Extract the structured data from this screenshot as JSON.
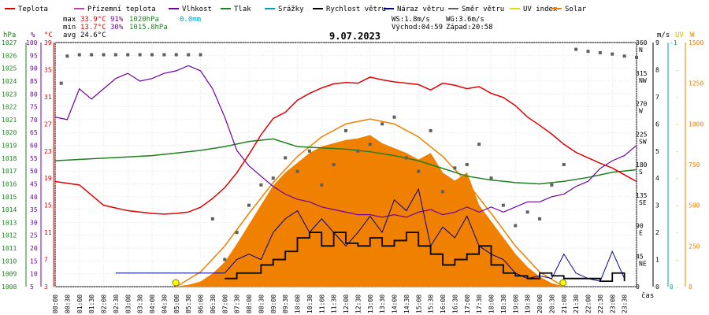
{
  "title": "9.07.2023",
  "legend": [
    {
      "label": "Teplota",
      "color": "#e00000"
    },
    {
      "label": "Přízemní teplota",
      "color": "#c040c0"
    },
    {
      "label": "Vlhkost",
      "color": "#7000a0"
    },
    {
      "label": "Tlak",
      "color": "#208020"
    },
    {
      "label": "Srážky",
      "color": "#00a0c0"
    },
    {
      "label": "Rychlost větru",
      "color": "#000000"
    },
    {
      "label": "Náraz větru",
      "color": "#000090"
    },
    {
      "label": "Směr větru",
      "color": "#606060"
    },
    {
      "label": "UV index",
      "color": "#e0e000"
    },
    {
      "label": "Solar",
      "color": "#f08000"
    }
  ],
  "stats": {
    "max_label": "max",
    "max_temp": "33.9°C",
    "max_hum": "91%",
    "max_press": "1020hPa",
    "rain": "0.0mm",
    "min_label": "min",
    "min_temp": "13.7°C",
    "min_hum": "30%",
    "min_press": "1015.8hPa",
    "avg_label": "avg",
    "avg_temp": "24.6°C"
  },
  "wind_info": {
    "ws": "WS:1.8m/s",
    "wg": "WG:3.6m/s",
    "sunrise": "Východ:04:59",
    "sunset": "Západ:20:58"
  },
  "axes": {
    "hpa_label": "hPa",
    "pct_label": "%",
    "c_label": "°C",
    "ms_label": "m/s",
    "uv_label": "UV",
    "w_label": "W",
    "hpa_ticks": [
      "1027",
      "1026",
      "1025",
      "1024",
      "1023",
      "1022",
      "1021",
      "1020",
      "1019",
      "1018",
      "1017",
      "1016",
      "1015",
      "1014",
      "1013",
      "1012",
      "1011",
      "1010",
      "1009",
      "1008"
    ],
    "pct_ticks": [
      "100",
      "95",
      "90",
      "85",
      "80",
      "75",
      "70",
      "65",
      "60",
      "55",
      "50",
      "45",
      "40",
      "35",
      "30",
      "25",
      "20",
      "15",
      "10",
      "5"
    ],
    "c_ticks": [
      "39",
      "35",
      "31",
      "27",
      "23",
      "19",
      "15",
      "11",
      "7",
      "3"
    ],
    "deg_ticks": [
      "360",
      "315",
      "270",
      "225",
      "180",
      "135",
      "90",
      "45",
      "0"
    ],
    "dir_ticks": [
      "N",
      "NW",
      "W",
      "SW",
      "S",
      "SE",
      "E",
      "NE",
      ""
    ],
    "ms_ticks": [
      "9",
      "8",
      "7",
      "6",
      "5",
      "4",
      "3",
      "2",
      "1",
      "0"
    ],
    "uv_ticks": [
      "-1",
      "",
      "",
      "",
      "",
      "",
      "",
      "",
      "",
      "0"
    ],
    "w_ticks": [
      "1500",
      "1250",
      "1000",
      "750",
      "500",
      "250",
      "0"
    ],
    "time_ticks": [
      "00:00",
      "00:30",
      "01:00",
      "01:30",
      "02:00",
      "02:30",
      "03:00",
      "03:30",
      "04:00",
      "04:30",
      "05:00",
      "05:30",
      "06:00",
      "06:30",
      "07:00",
      "07:30",
      "08:00",
      "08:30",
      "09:00",
      "09:30",
      "10:00",
      "10:30",
      "11:00",
      "11:30",
      "12:00",
      "12:30",
      "13:00",
      "13:30",
      "14:00",
      "14:30",
      "15:00",
      "15:30",
      "16:00",
      "16:30",
      "17:00",
      "17:30",
      "18:00",
      "18:30",
      "19:00",
      "19:30",
      "20:00",
      "20:30",
      "21:00",
      "21:30",
      "22:00",
      "22:30",
      "23:00",
      "23:30"
    ],
    "time_label": "čas"
  },
  "chart_data": {
    "type": "line",
    "title": "9.07.2023",
    "x_unit": "hours",
    "xlim": [
      0,
      24
    ],
    "temp_c": {
      "x": [
        0,
        1,
        2,
        3,
        4,
        4.5,
        5,
        5.5,
        6,
        6.5,
        7,
        7.5,
        8,
        8.5,
        9,
        9.5,
        10,
        10.5,
        11,
        11.5,
        12,
        12.5,
        13,
        13.5,
        14,
        14.5,
        15,
        15.5,
        16,
        16.5,
        17,
        17.5,
        18,
        18.5,
        19,
        19.5,
        20,
        20.5,
        21,
        21.5,
        22,
        22.5,
        23,
        23.5,
        24
      ],
      "y": [
        18.5,
        18,
        15,
        14.2,
        13.8,
        13.7,
        13.8,
        14,
        14.7,
        16,
        17.6,
        19.8,
        22.5,
        25.4,
        27.8,
        28.7,
        30.5,
        31.5,
        32.3,
        32.9,
        33.1,
        33.0,
        33.9,
        33.5,
        33.2,
        33.0,
        32.8,
        32.0,
        33.0,
        32.7,
        32.2,
        32.5,
        31.5,
        30.9,
        29.7,
        28.0,
        26.8,
        25.5,
        24.0,
        22.8,
        22.0,
        21.2,
        20.5,
        19.5,
        18.5
      ]
    },
    "humidity_pct": {
      "x": [
        0,
        0.5,
        1,
        1.5,
        2,
        2.5,
        3,
        3.5,
        4,
        4.5,
        5,
        5.5,
        6,
        6.5,
        7,
        7.5,
        8,
        8.5,
        9,
        9.5,
        10,
        10.5,
        11,
        11.5,
        12,
        12.5,
        13,
        13.5,
        14,
        14.5,
        15,
        15.5,
        16,
        16.5,
        17,
        17.5,
        18,
        18.5,
        19,
        19.5,
        20,
        20.5,
        21,
        21.5,
        22,
        22.5,
        23,
        23.5,
        24
      ],
      "y": [
        71,
        70,
        82,
        78,
        82,
        86,
        88,
        85,
        86,
        88,
        89,
        91,
        89,
        82,
        71,
        58,
        52,
        48,
        44,
        41,
        39,
        38,
        36,
        35,
        34,
        33,
        33,
        32,
        33,
        32,
        34,
        35,
        33,
        34,
        36,
        34,
        36,
        34,
        36,
        38,
        38,
        40,
        41,
        44,
        46,
        51,
        54,
        56,
        60
      ]
    },
    "pressure_hpa": {
      "x": [
        0,
        2,
        4,
        6,
        7,
        8,
        9,
        9.5,
        10,
        11,
        12,
        13,
        14,
        15,
        16,
        17,
        18,
        19,
        20,
        21,
        22,
        23,
        24
      ],
      "y": [
        1017.8,
        1018.0,
        1018.2,
        1018.6,
        1018.9,
        1019.3,
        1019.5,
        1019.2,
        1018.9,
        1018.8,
        1018.7,
        1018.5,
        1018.2,
        1017.8,
        1017.2,
        1016.6,
        1016.3,
        1016.1,
        1016.0,
        1016.2,
        1016.5,
        1016.9,
        1017.1
      ]
    },
    "wind_dir_deg": {
      "x": [
        0.25,
        0.5,
        1,
        1.5,
        2,
        2.5,
        3,
        3.5,
        4,
        4.5,
        5,
        5.5,
        6,
        6.5,
        7,
        7.5,
        8,
        8.5,
        9,
        9.5,
        10,
        10.5,
        11,
        11.5,
        12,
        12.5,
        13,
        13.5,
        14,
        14.5,
        15,
        15.5,
        16,
        16.5,
        17,
        17.5,
        18,
        18.5,
        19,
        19.5,
        20,
        20.5,
        21,
        21.5,
        22,
        22.5,
        23,
        23.5,
        24
      ],
      "y": [
        300,
        340,
        342,
        342,
        342,
        342,
        342,
        342,
        342,
        342,
        342,
        342,
        342,
        100,
        40,
        80,
        120,
        150,
        160,
        190,
        170,
        200,
        150,
        180,
        230,
        200,
        210,
        240,
        250,
        190,
        170,
        230,
        140,
        175,
        180,
        210,
        160,
        120,
        90,
        110,
        100,
        150,
        180,
        350,
        347,
        345,
        343,
        340,
        338
      ]
    },
    "wind_speed_ms": {
      "x": [
        7,
        7.5,
        8,
        8.5,
        9,
        9.5,
        10,
        10.5,
        11,
        11.5,
        12,
        12.5,
        13,
        13.5,
        14,
        14.5,
        15,
        15.5,
        16,
        16.5,
        17,
        17.5,
        18,
        18.5,
        19,
        19.5,
        20,
        20.5,
        21,
        21.5,
        22,
        22.5,
        23,
        23.5
      ],
      "y": [
        0.3,
        0.5,
        0.5,
        0.8,
        1,
        1.3,
        1.8,
        2.0,
        1.5,
        2.0,
        1.6,
        1.5,
        1.8,
        1.5,
        1.7,
        2.0,
        1.5,
        1.2,
        0.8,
        1.0,
        1.2,
        1.5,
        0.8,
        0.5,
        0.4,
        0.3,
        0.5,
        0.4,
        0.3,
        0.3,
        0.3,
        0.2,
        0.5,
        0.2
      ]
    },
    "wind_gust_ms": {
      "x": [
        2.5,
        7,
        7.5,
        8,
        8.5,
        9,
        9.5,
        10,
        10.5,
        11,
        11.5,
        12,
        12.5,
        13,
        13.5,
        14,
        14.5,
        15,
        15.5,
        16,
        16.5,
        17,
        17.5,
        18,
        18.5,
        19,
        19.5,
        20,
        20.5,
        21,
        21.5,
        22,
        22.5,
        23,
        23.5
      ],
      "y": [
        0.5,
        0.5,
        1.0,
        1.2,
        1.0,
        2.0,
        2.5,
        2.8,
        2.0,
        2.5,
        2.0,
        1.5,
        2.0,
        2.6,
        2.0,
        3.2,
        2.8,
        3.6,
        1.5,
        2.2,
        1.8,
        2.6,
        1.5,
        1.2,
        1.0,
        0.5,
        0.3,
        0.4,
        0.3,
        1.2,
        0.5,
        0.3,
        0.2,
        1.3,
        0.3
      ]
    },
    "solar_wm2": {
      "x": [
        5,
        5.5,
        6,
        6.5,
        7,
        7.5,
        8,
        8.5,
        9,
        9.5,
        10,
        10.5,
        11,
        11.5,
        12,
        12.5,
        13,
        13.5,
        14,
        14.5,
        15,
        15.5,
        16,
        16.5,
        17,
        17.5,
        18,
        18.5,
        19,
        19.5,
        20,
        20.5,
        21
      ],
      "y": [
        0,
        10,
        30,
        80,
        150,
        260,
        380,
        500,
        620,
        700,
        760,
        820,
        860,
        880,
        900,
        910,
        930,
        880,
        850,
        820,
        780,
        820,
        700,
        650,
        700,
        500,
        400,
        300,
        200,
        120,
        60,
        20,
        0
      ]
    },
    "solar_theoretical_wm2": {
      "x": [
        5,
        6,
        7,
        8,
        9,
        10,
        11,
        12,
        13,
        14,
        15,
        16,
        17,
        18,
        19,
        20,
        21
      ],
      "y": [
        0,
        90,
        250,
        450,
        640,
        800,
        920,
        1000,
        1030,
        1000,
        920,
        800,
        640,
        450,
        250,
        90,
        0
      ]
    },
    "rain_mm": {
      "total": 0.0
    },
    "ylim_temp_c": [
      3,
      39
    ],
    "ylim_humidity_pct": [
      5,
      100
    ],
    "ylim_pressure_hpa": [
      1008,
      1027
    ],
    "ylim_wind_ms": [
      0,
      9
    ],
    "ylim_solar_wm2": [
      0,
      1500
    ],
    "grid": true
  }
}
